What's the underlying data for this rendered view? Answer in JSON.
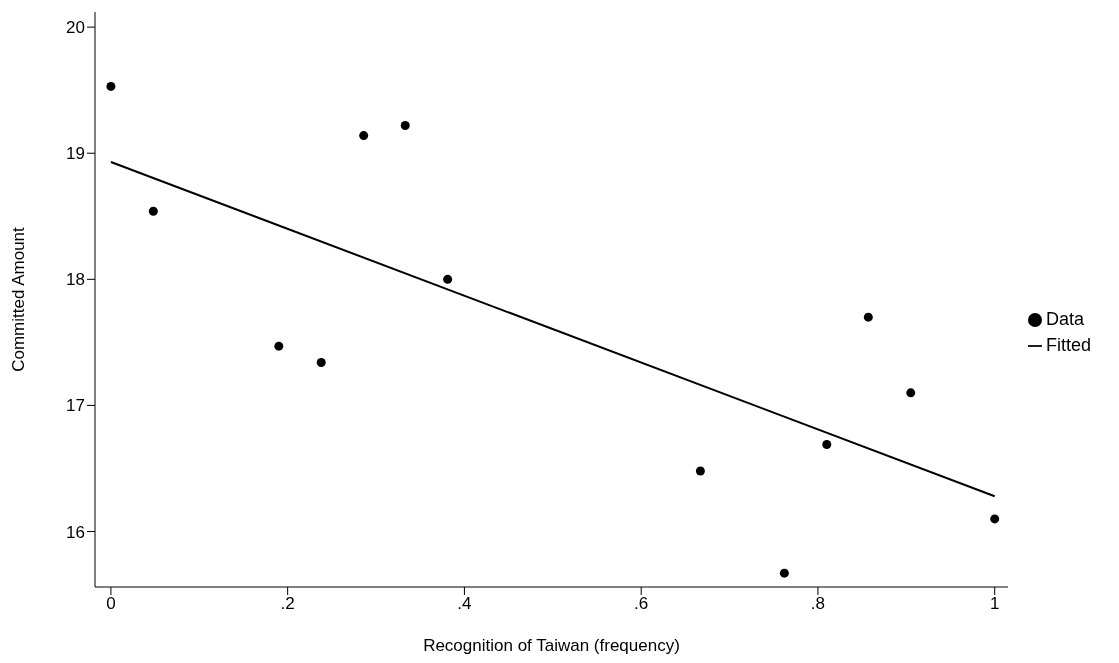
{
  "chart_data": {
    "type": "scatter",
    "xlabel": "Recognition of Taiwan (frequency)",
    "ylabel": "Committed Amount",
    "xlim": [
      -0.018,
      1.015
    ],
    "xticks": [
      0,
      {
        "value": 0.2,
        "label": ".2"
      },
      {
        "value": 0.4,
        "label": ".4"
      },
      {
        "value": 0.6,
        "label": ".6"
      },
      {
        "value": 0.8,
        "label": ".8"
      },
      1
    ],
    "ylim": [
      15.56,
      20.12
    ],
    "yticks": [
      16,
      17,
      18,
      19,
      20
    ],
    "legend": "right",
    "series": [
      {
        "name": "Data",
        "marker": "circle",
        "color": "#000000",
        "x": [
          0,
          0.048,
          0.19,
          0.238,
          0.286,
          0.333,
          0.381,
          0.667,
          0.762,
          0.81,
          0.857,
          0.905,
          1
        ],
        "values": [
          19.53,
          18.54,
          17.47,
          17.34,
          19.14,
          19.22,
          18.0,
          16.48,
          15.67,
          16.69,
          17.7,
          17.1,
          16.1
        ]
      },
      {
        "name": "Fitted",
        "type": "line",
        "color": "#000000",
        "x": [
          0,
          1
        ],
        "values": [
          18.93,
          16.28
        ]
      }
    ]
  }
}
